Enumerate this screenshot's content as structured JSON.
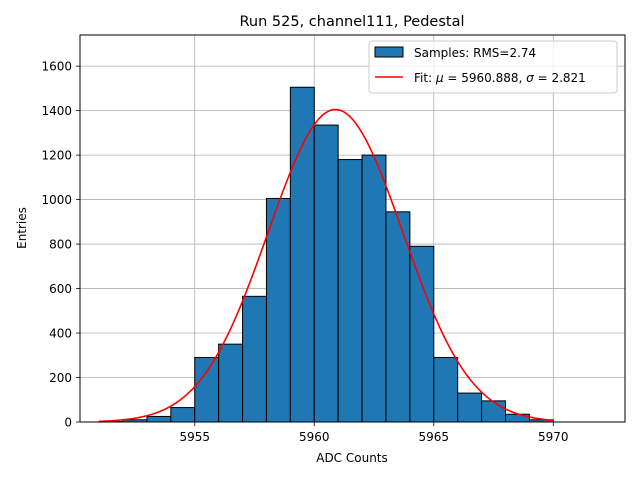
{
  "chart_data": {
    "type": "bar",
    "title": "Run 525, channel111, Pedestal",
    "xlabel": "ADC Counts",
    "ylabel": "Entries",
    "xlim": [
      5950.2,
      5973.0
    ],
    "ylim": [
      0,
      1740
    ],
    "xticks": [
      5955,
      5960,
      5965,
      5970
    ],
    "yticks": [
      0,
      200,
      400,
      600,
      800,
      1000,
      1200,
      1400,
      1600
    ],
    "grid": true,
    "legend_position": "top-right",
    "histogram": {
      "name": "Samples: RMS=2.74",
      "color": "#1f77b4",
      "bin_width": 1,
      "bins_left_edge": [
        5951,
        5952,
        5953,
        5954,
        5955,
        5956,
        5957,
        5958,
        5959,
        5960,
        5961,
        5962,
        5963,
        5964,
        5965,
        5966,
        5967,
        5968,
        5969,
        5970,
        5971
      ],
      "counts": [
        2,
        10,
        25,
        65,
        290,
        350,
        565,
        1005,
        1505,
        1335,
        1180,
        1200,
        945,
        790,
        290,
        130,
        95,
        35,
        10,
        0,
        0
      ]
    },
    "fit": {
      "name_prefix": "Fit: ",
      "mu_symbol": "μ",
      "mu_value": " = 5960.888, ",
      "sigma_symbol": "σ",
      "sigma_value": " = 2.821",
      "color": "#ff0000",
      "mu": 5960.888,
      "sigma": 2.821,
      "amplitude": 1405,
      "x_range": [
        5951,
        5970
      ]
    }
  }
}
